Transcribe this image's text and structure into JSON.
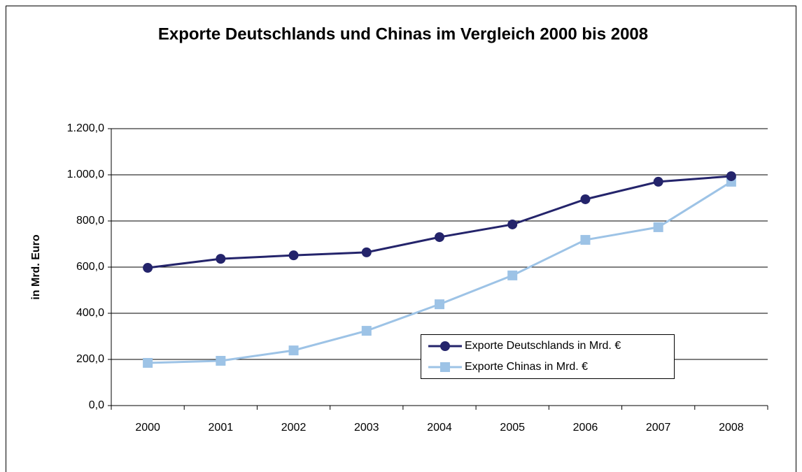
{
  "chart_data": {
    "type": "line",
    "title": "Exporte Deutschlands und Chinas im Vergleich 2000 bis 2008",
    "y_label": "in Mrd. Euro",
    "categories": [
      "2000",
      "2001",
      "2002",
      "2003",
      "2004",
      "2005",
      "2006",
      "2007",
      "2008"
    ],
    "series": [
      {
        "name": "Exporte Deutschlands in Mrd. €",
        "color": "#24246b",
        "marker": "circle",
        "values": [
          597,
          636,
          651,
          664,
          730,
          785,
          894,
          970,
          994
        ]
      },
      {
        "name": "Exporte Chinas in Mrd. €",
        "color": "#9dc3e6",
        "marker": "square",
        "values": [
          185,
          194,
          239,
          324,
          439,
          564,
          718,
          773,
          970
        ]
      }
    ],
    "ylim": [
      0,
      1200
    ],
    "yticks": [
      {
        "value": 0,
        "label": "0,0"
      },
      {
        "value": 200,
        "label": "200,0"
      },
      {
        "value": 400,
        "label": "400,0"
      },
      {
        "value": 600,
        "label": "600,0"
      },
      {
        "value": 800,
        "label": "800,0"
      },
      {
        "value": 1000,
        "label": "1.000,0"
      },
      {
        "value": 1200,
        "label": "1.200,0"
      }
    ],
    "grid": true
  }
}
